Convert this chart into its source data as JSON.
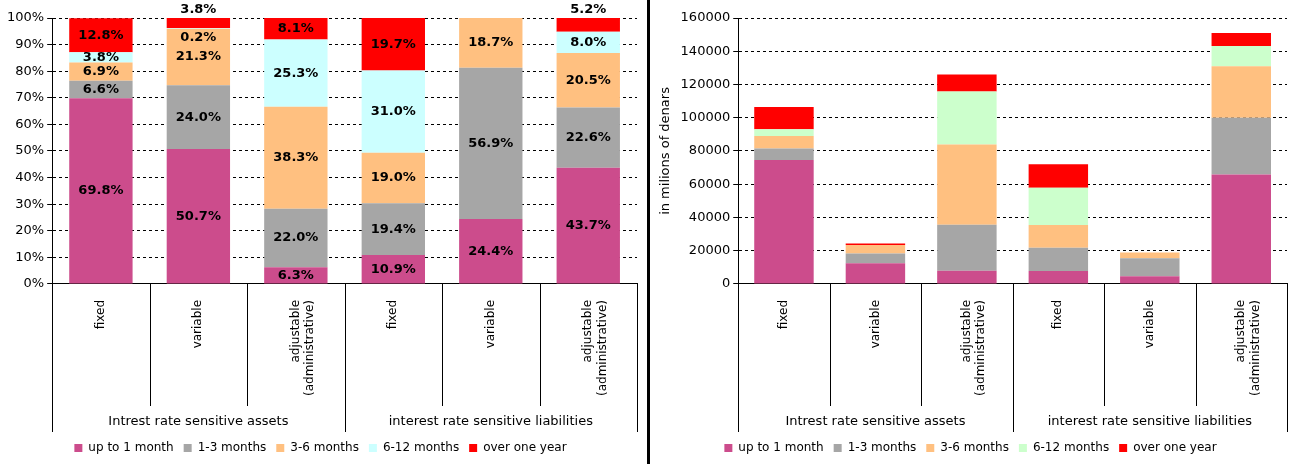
{
  "chart_data": [
    {
      "type": "bar",
      "stacked": true,
      "categories": [
        "fixed",
        "variable",
        "adjustable (administrative)",
        "fixed",
        "variable",
        "adjustable (administrative)"
      ],
      "series": [
        {
          "name": "up to 1 month",
          "color": "#cc4c8c",
          "values": [
            69.8,
            50.7,
            6.3,
            10.9,
            24.4,
            43.7
          ],
          "value_labels": [
            "69.8%",
            "50.7%",
            "6.3%",
            "10.9%",
            "24.4%",
            "43.7%"
          ]
        },
        {
          "name": "1-3 months",
          "color": "#a6a6a6",
          "values": [
            6.6,
            24.0,
            22.0,
            19.4,
            56.9,
            22.6
          ],
          "value_labels": [
            "6.6%",
            "24.0%",
            "22.0%",
            "19.4%",
            "56.9%",
            "22.6%"
          ]
        },
        {
          "name": "3-6 months",
          "color": "#ffc080",
          "values": [
            6.9,
            21.3,
            38.3,
            19.0,
            18.7,
            20.5
          ],
          "value_labels": [
            "6.9%",
            "21.3%",
            "38.3%",
            "19.0%",
            "18.7%",
            "20.5%"
          ]
        },
        {
          "name": "6-12 months",
          "color": "#ccffff",
          "values": [
            3.8,
            0.2,
            25.3,
            31.0,
            null,
            8.0
          ],
          "value_labels": [
            "3.8%",
            "0.2%",
            "25.3%",
            "31.0%",
            null,
            "8.0%"
          ]
        },
        {
          "name": "over one year",
          "color": "#ff0000",
          "values": [
            12.8,
            3.8,
            8.1,
            19.7,
            null,
            5.2
          ],
          "value_labels": [
            "12.8%",
            "3.8%",
            "8.1%",
            "19.7%",
            null,
            "5.2%"
          ]
        }
      ],
      "ylim": [
        0,
        100
      ],
      "yticks": [
        {
          "value": 0,
          "label": "0%"
        },
        {
          "value": 10,
          "label": "10%"
        },
        {
          "value": 20,
          "label": "20%"
        },
        {
          "value": 30,
          "label": "30%"
        },
        {
          "value": 40,
          "label": "40%"
        },
        {
          "value": 50,
          "label": "50%"
        },
        {
          "value": 60,
          "label": "60%"
        },
        {
          "value": 70,
          "label": "70%"
        },
        {
          "value": 80,
          "label": "80%"
        },
        {
          "value": 90,
          "label": "90%"
        },
        {
          "value": 100,
          "label": "100%"
        }
      ],
      "grid": "y",
      "legend": "bottom",
      "annotations": [
        "Intrest rate sensitive assets",
        "interest rate sensitive liabilities"
      ]
    },
    {
      "type": "bar",
      "stacked": true,
      "categories": [
        "fixed",
        "variable",
        "adjustable (administrative)",
        "fixed",
        "variable",
        "adjustable (administrative)"
      ],
      "series": [
        {
          "name": "up to 1 month",
          "color": "#cc4c8c",
          "values": [
            74500,
            12400,
            7900,
            7800,
            4600,
            65900
          ]
        },
        {
          "name": "1-3 months",
          "color": "#a6a6a6",
          "values": [
            7000,
            5900,
            27700,
            14000,
            10800,
            34100
          ]
        },
        {
          "name": "3-6 months",
          "color": "#ffc080",
          "values": [
            7500,
            5200,
            48300,
            13700,
            3500,
            31000
          ]
        },
        {
          "name": "6-12 months",
          "color": "#ccffcc",
          "values": [
            4000,
            null,
            31900,
            22300,
            null,
            12100
          ]
        },
        {
          "name": "over one year",
          "color": "#ff0000",
          "values": [
            13500,
            900,
            10200,
            14200,
            null,
            7900
          ]
        }
      ],
      "ylabel": "in milions of denars",
      "ylim": [
        0,
        160000
      ],
      "yticks": [
        0,
        20000,
        40000,
        60000,
        80000,
        100000,
        120000,
        140000,
        160000
      ],
      "grid": "y",
      "legend": "bottom",
      "annotations": [
        "Intrest rate sensitive assets",
        "interest rate sensitive liabilities"
      ]
    }
  ]
}
